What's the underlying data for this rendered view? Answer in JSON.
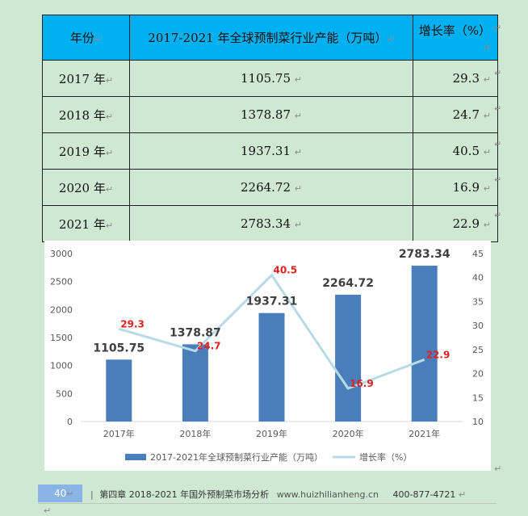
{
  "table": {
    "headers": [
      "年份",
      "2017-2021 年全球预制菜行业产能（万吨）",
      "增长率（%）"
    ],
    "rows": [
      {
        "year": "2017 年",
        "capacity": "1105.75",
        "growth": "29.3"
      },
      {
        "year": "2018 年",
        "capacity": "1378.87",
        "growth": "24.7"
      },
      {
        "year": "2019 年",
        "capacity": "1937.31",
        "growth": "40.5"
      },
      {
        "year": "2020 年",
        "capacity": "2264.72",
        "growth": "16.9"
      },
      {
        "year": "2021 年",
        "capacity": "2783.34",
        "growth": "22.9"
      }
    ]
  },
  "chart_data": {
    "type": "bar",
    "categories": [
      "2017年",
      "2018年",
      "2019年",
      "2020年",
      "2021年"
    ],
    "series": [
      {
        "name": "2017-2021年全球预制菜行业产能（万吨）",
        "type": "bar",
        "axis": "left",
        "values": [
          1105.75,
          1378.87,
          1937.31,
          2264.72,
          2783.34
        ],
        "color": "#4a7ebb"
      },
      {
        "name": "增长率（%）",
        "type": "line",
        "axis": "right",
        "values": [
          29.3,
          24.7,
          40.5,
          16.9,
          22.9
        ],
        "color": "#b7dbe6"
      }
    ],
    "y_left": {
      "min": 0,
      "max": 3000,
      "ticks": [
        "0",
        "500",
        "1000",
        "1500",
        "2000",
        "2500",
        "3000"
      ]
    },
    "y_right": {
      "min": 10,
      "max": 45,
      "ticks": [
        "10",
        "15",
        "20",
        "25",
        "30",
        "35",
        "40",
        "45"
      ]
    },
    "bar_labels": [
      "1105.75",
      "1378.87",
      "1937.31",
      "2264.72",
      "2783.34"
    ],
    "line_labels": [
      "29.3",
      "24.7",
      "40.5",
      "16.9",
      "22.9"
    ],
    "line_label_color": "#e02020",
    "legend_position": "bottom",
    "grid": false
  },
  "footer": {
    "page_number": "40",
    "chapter": "第四章",
    "title": "2018-2021 年国外预制菜市场分析",
    "website": "www.huizhilianheng.cn",
    "phone": "400-877-4721"
  },
  "marks": {
    "para": "↵"
  }
}
